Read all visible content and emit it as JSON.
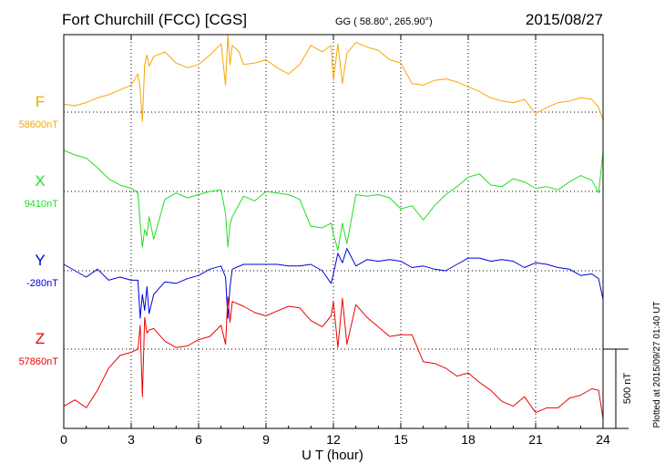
{
  "header": {
    "station": "Fort Churchill (FCC)  [CGS]",
    "coords": "GG ( 58.80°, 265.90°)",
    "date": "2015/08/27"
  },
  "plotted_note": "Plotted at 2015/09/27 01:40 UT",
  "scale_label": "500 nT",
  "chart_data": {
    "type": "line",
    "xlabel": "U T (hour)",
    "xlim": [
      0,
      24
    ],
    "xticks": [
      "0",
      "3",
      "6",
      "9",
      "12",
      "15",
      "18",
      "21",
      "24"
    ],
    "grid": true,
    "series": [
      {
        "name": "F",
        "baseline": "58600nT",
        "color": "#f5a800",
        "x": [
          0,
          0.5,
          1,
          1.5,
          2,
          2.5,
          3,
          3.3,
          3.4,
          3.5,
          3.6,
          3.7,
          3.8,
          4,
          4.5,
          5,
          5.5,
          6,
          6.5,
          7,
          7.2,
          7.3,
          7.4,
          7.5,
          7.8,
          8,
          8.5,
          9,
          9.5,
          10,
          10.5,
          11,
          11.5,
          11.9,
          12,
          12.2,
          12.4,
          12.6,
          13,
          13.5,
          14,
          14.5,
          15,
          15.5,
          16,
          16.5,
          17,
          17.5,
          18,
          18.5,
          19,
          19.5,
          20,
          20.5,
          21,
          21.5,
          22,
          22.5,
          23,
          23.5,
          23.8,
          24
        ],
        "y": [
          50,
          40,
          60,
          90,
          110,
          140,
          170,
          240,
          150,
          -60,
          300,
          360,
          290,
          350,
          380,
          310,
          280,
          300,
          360,
          430,
          170,
          490,
          300,
          420,
          380,
          300,
          310,
          330,
          280,
          240,
          300,
          420,
          380,
          420,
          200,
          430,
          180,
          370,
          440,
          410,
          390,
          330,
          310,
          180,
          170,
          200,
          210,
          190,
          160,
          130,
          90,
          70,
          60,
          80,
          -10,
          30,
          60,
          70,
          90,
          80,
          30,
          -50
        ]
      },
      {
        "name": "X",
        "baseline": "9410nT",
        "color": "#22dd22",
        "x": [
          0,
          0.5,
          1,
          1.5,
          2,
          2.5,
          3,
          3.3,
          3.4,
          3.5,
          3.6,
          3.7,
          3.8,
          4,
          4.5,
          5,
          5.5,
          6,
          6.5,
          7,
          7.2,
          7.3,
          7.4,
          7.5,
          8,
          8.5,
          9,
          9.5,
          10,
          10.5,
          11,
          11.5,
          11.9,
          12,
          12.2,
          12.4,
          12.6,
          13,
          13.5,
          14,
          14.5,
          15,
          15.5,
          16,
          16.5,
          17,
          17.5,
          18,
          18.5,
          19,
          19.5,
          20,
          20.5,
          21,
          21.5,
          22,
          22.5,
          23,
          23.5,
          23.8,
          24
        ],
        "y": [
          260,
          230,
          210,
          150,
          80,
          40,
          20,
          -10,
          -200,
          -350,
          -240,
          -280,
          -160,
          -300,
          -50,
          -10,
          -40,
          -20,
          0,
          10,
          -140,
          -350,
          -210,
          -160,
          -30,
          -60,
          0,
          -10,
          -20,
          -50,
          -220,
          -230,
          -200,
          -270,
          -370,
          -200,
          -330,
          -20,
          -30,
          -20,
          -40,
          -110,
          -90,
          -180,
          -90,
          -20,
          30,
          90,
          110,
          40,
          30,
          80,
          60,
          20,
          30,
          10,
          60,
          100,
          70,
          -10,
          250
        ]
      },
      {
        "name": "Y",
        "baseline": "-280nT",
        "color": "#0000dd",
        "x": [
          0,
          0.5,
          1,
          1.5,
          2,
          2.5,
          3,
          3.3,
          3.4,
          3.5,
          3.6,
          3.7,
          3.8,
          4,
          4.5,
          5,
          5.5,
          6,
          6.5,
          7,
          7.2,
          7.3,
          7.4,
          7.5,
          8,
          8.5,
          9,
          9.5,
          10,
          10.5,
          11,
          11.5,
          11.9,
          12,
          12.2,
          12.4,
          12.6,
          13,
          13.5,
          14,
          14.5,
          15,
          15.5,
          16,
          16.5,
          17,
          17.5,
          18,
          18.5,
          19,
          19.5,
          20,
          20.5,
          21,
          21.5,
          22,
          22.5,
          23,
          23.5,
          23.8,
          24
        ],
        "y": [
          40,
          0,
          -40,
          10,
          -60,
          -40,
          -60,
          -60,
          -300,
          -150,
          -250,
          -100,
          -270,
          -150,
          -70,
          -80,
          -50,
          -30,
          10,
          30,
          -40,
          -300,
          -100,
          10,
          40,
          40,
          40,
          40,
          30,
          30,
          40,
          0,
          -80,
          -20,
          110,
          50,
          140,
          30,
          70,
          60,
          70,
          60,
          20,
          30,
          10,
          0,
          40,
          80,
          80,
          60,
          70,
          60,
          20,
          50,
          40,
          20,
          10,
          -30,
          -20,
          -50,
          -180
        ]
      },
      {
        "name": "Z",
        "baseline": "57860nT",
        "color": "#ee0000",
        "x": [
          0,
          0.5,
          1,
          1.5,
          2,
          2.5,
          3,
          3.3,
          3.4,
          3.5,
          3.6,
          3.7,
          3.8,
          4,
          4.5,
          5,
          5.5,
          6,
          6.5,
          7,
          7.2,
          7.3,
          7.4,
          7.5,
          8,
          8.5,
          9,
          9.5,
          10,
          10.5,
          11,
          11.5,
          11.9,
          12,
          12.2,
          12.4,
          12.6,
          13,
          13.5,
          14,
          14.5,
          15,
          15.5,
          16,
          16.5,
          17,
          17.5,
          18,
          18.5,
          19,
          19.5,
          20,
          20.5,
          21,
          21.5,
          22,
          22.5,
          23,
          23.5,
          23.8,
          24
        ],
        "y": [
          -360,
          -320,
          -370,
          -260,
          -120,
          -40,
          -20,
          0,
          150,
          -300,
          200,
          100,
          120,
          130,
          50,
          10,
          20,
          60,
          80,
          150,
          30,
          330,
          170,
          300,
          270,
          230,
          210,
          240,
          270,
          260,
          180,
          140,
          210,
          300,
          10,
          320,
          30,
          280,
          200,
          140,
          80,
          90,
          90,
          -80,
          -90,
          -120,
          -170,
          -150,
          -210,
          -260,
          -330,
          -360,
          -300,
          -400,
          -370,
          -370,
          -310,
          -290,
          -250,
          -260,
          -440
        ]
      }
    ]
  }
}
